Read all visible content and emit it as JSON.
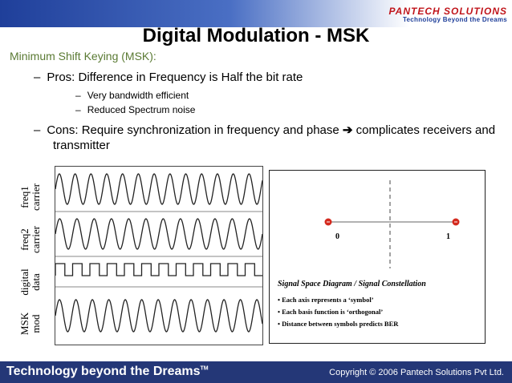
{
  "header": {
    "brand": "PANTECH SOLUTIONS",
    "tagline": "Technology Beyond the Dreams"
  },
  "slide": {
    "title": "Digital Modulation - MSK",
    "subtitle": "Minimum Shift Keying (MSK):",
    "pros": "Pros: Difference in Frequency is Half the bit rate",
    "pros_items": [
      "Very bandwidth efficient",
      "Reduced Spectrum noise"
    ],
    "cons_line1": "Cons: Require synchronization in frequency and phase",
    "cons_arrow": "➔",
    "cons_rest": "complicates receivers and",
    "cons_line2": "transmitter",
    "dash": "–"
  },
  "figure": {
    "signal_labels": [
      {
        "line1": "freq1",
        "line2": "carrier"
      },
      {
        "line1": "freq2",
        "line2": "carrier"
      },
      {
        "line1": "digital",
        "line2": "data"
      },
      {
        "line1": "MSK",
        "line2": "mod"
      }
    ]
  },
  "constellation": {
    "points": [
      "0",
      "1"
    ],
    "title": "Signal Space Diagram / Signal Constellation",
    "bullets": [
      "• Each axis represents a ‘symbol’",
      "• Each basis function is ‘orthogonal’",
      "• Distance between symbols predicts BER"
    ]
  },
  "footer": {
    "left": "Technology beyond the Dreams",
    "tm": "TM",
    "right": "Copyright © 2006 Pantech Solutions Pvt Ltd."
  },
  "colors": {
    "footer_bg": "#243777",
    "subtitle": "#5a7a33",
    "brand_red": "#c0151b",
    "point": "#d42a1e"
  }
}
